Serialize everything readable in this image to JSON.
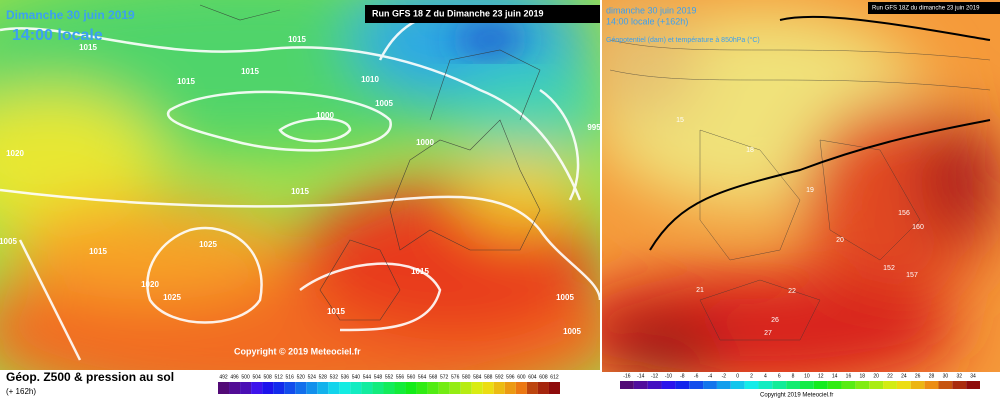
{
  "left_panel": {
    "date": "Dimanche 30 juin 2019",
    "time": "14:00 locale",
    "run": "Run GFS 18 Z du Dimanche 23 juin 2019",
    "copyright": "Copyright © 2019 Meteociel.fr",
    "legend_title": "Géop. Z500 & pression au sol",
    "lead_time": "(+ 162h)",
    "isobar_labels": [
      1015,
      1015,
      1015,
      1015,
      1010,
      1005,
      1000,
      1000,
      995,
      1020,
      1005,
      1015,
      1025,
      1020,
      1025,
      1015,
      1015,
      1005,
      1005,
      1015
    ],
    "scale_labels": [
      492,
      496,
      500,
      504,
      508,
      512,
      516,
      520,
      524,
      528,
      532,
      536,
      540,
      544,
      548,
      552,
      556,
      560,
      564,
      568,
      572,
      576,
      580,
      584,
      588,
      592,
      596,
      600,
      604,
      608,
      612
    ]
  },
  "right_panel": {
    "date": "dimanche 30 juin 2019",
    "time": "14:00 locale (+162h)",
    "run": "Run GFS 18Z du dimanche 23 juin 2019",
    "description": "Géopotentiel (dam) et température à 850hPa (°C)",
    "copyright": "Copyright 2019 Meteociel.fr",
    "map_labels": [
      "156",
      "160",
      "152",
      "157",
      "27",
      "26",
      "22",
      "21",
      "20",
      "19",
      "18",
      "15"
    ],
    "scale_labels": [
      -16,
      -14,
      -12,
      -10,
      -8,
      -6,
      -4,
      -2,
      0,
      2,
      4,
      6,
      8,
      10,
      12,
      14,
      16,
      18,
      20,
      22,
      24,
      26,
      28,
      30,
      32,
      34
    ]
  }
}
